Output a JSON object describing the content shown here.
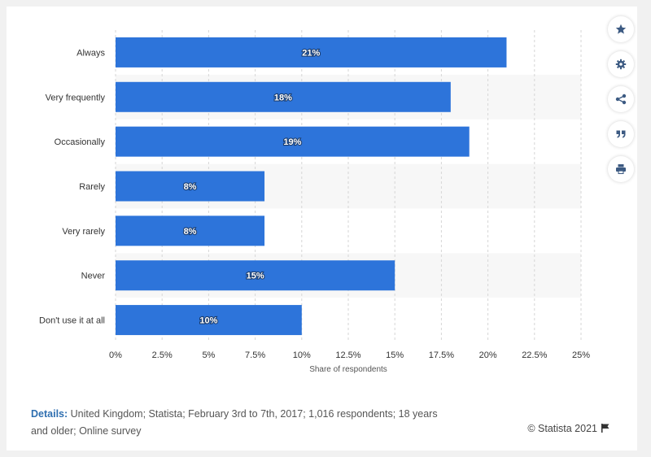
{
  "chart_data": {
    "type": "bar",
    "orientation": "horizontal",
    "categories": [
      "Always",
      "Very frequently",
      "Occasionally",
      "Rarely",
      "Very rarely",
      "Never",
      "Don't use it at all"
    ],
    "values": [
      21,
      18,
      19,
      8,
      8,
      15,
      10
    ],
    "value_labels": [
      "21%",
      "18%",
      "19%",
      "8%",
      "8%",
      "15%",
      "10%"
    ],
    "xlabel": "Share of respondents",
    "ylabel": "",
    "xlim": [
      0,
      25
    ],
    "x_ticks": [
      "0%",
      "2.5%",
      "5%",
      "7.5%",
      "10%",
      "12.5%",
      "15%",
      "17.5%",
      "20%",
      "22.5%",
      "25%"
    ],
    "x_tick_values": [
      0,
      2.5,
      5,
      7.5,
      10,
      12.5,
      15,
      17.5,
      20,
      22.5,
      25
    ],
    "bar_color": "#2d74da",
    "band_color": "#f7f7f7",
    "grid": true
  },
  "footer": {
    "details_label": "Details:",
    "details_text": " United Kingdom; Statista; February 3rd to 7th, 2017; 1,016 respondents; 18 years and older; Online survey",
    "copyright": "© Statista 2021"
  },
  "toolbar": {
    "icons": [
      "star-icon",
      "gear-icon",
      "share-icon",
      "quote-icon",
      "print-icon"
    ],
    "icon_color": "#3c5a82"
  }
}
